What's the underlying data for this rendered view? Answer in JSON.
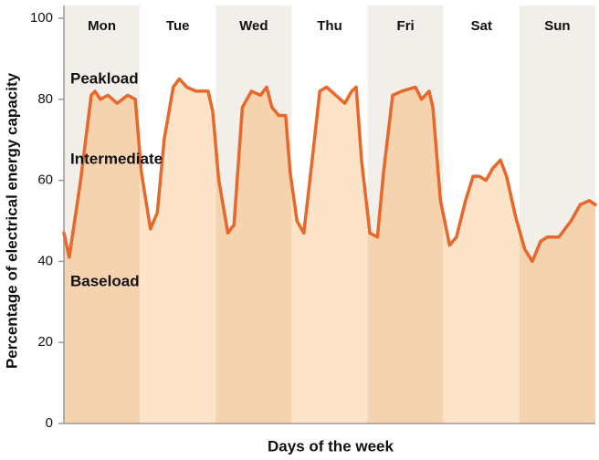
{
  "chart_data": {
    "type": "area",
    "x_label": "Days of the week",
    "y_label": "Percentage of electrical energy capacity",
    "categories": [
      "Mon",
      "Tue",
      "Wed",
      "Thu",
      "Fri",
      "Sat",
      "Sun"
    ],
    "annotations": [
      "Peakload",
      "Intermediate",
      "Baseload"
    ],
    "x": [
      0,
      0.07,
      0.22,
      0.36,
      0.41,
      0.48,
      0.58,
      0.7,
      0.84,
      0.94,
      1.02,
      1.14,
      1.23,
      1.32,
      1.44,
      1.52,
      1.62,
      1.74,
      1.9,
      1.96,
      2.04,
      2.16,
      2.24,
      2.35,
      2.47,
      2.59,
      2.67,
      2.74,
      2.83,
      2.92,
      2.98,
      3.07,
      3.16,
      3.27,
      3.37,
      3.46,
      3.58,
      3.7,
      3.79,
      3.85,
      3.92,
      4.03,
      4.13,
      4.21,
      4.33,
      4.45,
      4.63,
      4.71,
      4.81,
      4.86,
      4.96,
      5.08,
      5.17,
      5.29,
      5.39,
      5.47,
      5.56,
      5.65,
      5.75,
      5.83,
      5.95,
      6.07,
      6.17,
      6.28,
      6.37,
      6.52,
      6.68,
      6.8,
      6.92,
      7
    ],
    "values": [
      47,
      41,
      60,
      81,
      82,
      80,
      81,
      79,
      81,
      80,
      62,
      48,
      52,
      70,
      83,
      85,
      83,
      82,
      82,
      77,
      60,
      47,
      49,
      78,
      82,
      81,
      83,
      78,
      76,
      76,
      62,
      50,
      47,
      65,
      82,
      83,
      81,
      79,
      82,
      83,
      65,
      47,
      46,
      62,
      81,
      82,
      83,
      80,
      82,
      78,
      55,
      44,
      46,
      55,
      61,
      61,
      60,
      63,
      65,
      61,
      51,
      43,
      40,
      45,
      46,
      46,
      50,
      54,
      55,
      54
    ],
    "color": "#e8672a",
    "band_colors": {
      "dark_top": "#f2eee9",
      "dark_fill": "#f5d3ae",
      "light_top": "#ffffff",
      "light_fill": "#fde4c8"
    },
    "xlim": [
      0,
      7
    ],
    "ylim": [
      0,
      100
    ],
    "yticks": [
      0,
      20,
      40,
      60,
      80,
      100
    ]
  }
}
